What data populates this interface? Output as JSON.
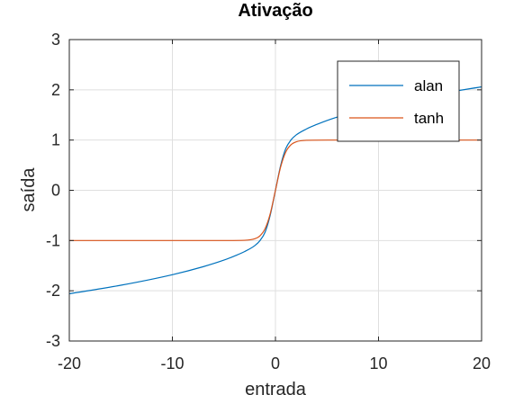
{
  "chart_data": {
    "type": "line",
    "title": "Ativação",
    "xlabel": "entrada",
    "ylabel": "saída",
    "xlim": [
      -20,
      20
    ],
    "ylim": [
      -3,
      3
    ],
    "xticks": [
      -20,
      -10,
      0,
      10,
      20
    ],
    "yticks": [
      -3,
      -2,
      -1,
      0,
      1,
      2,
      3
    ],
    "grid": true,
    "legend_position": "top-right",
    "series": [
      {
        "name": "alan",
        "color": "#0072bd",
        "x": [
          -20,
          -15,
          -10,
          -7,
          -5,
          -4,
          -3,
          -2,
          -1.5,
          -1,
          -0.5,
          0,
          0.5,
          1,
          1.5,
          2,
          3,
          4,
          5,
          7,
          10,
          15,
          20
        ],
        "y": [
          -2.06,
          -1.89,
          -1.68,
          -1.52,
          -1.39,
          -1.31,
          -1.22,
          -1.1,
          -1.0,
          -0.83,
          -0.49,
          0,
          0.49,
          0.83,
          1.0,
          1.1,
          1.22,
          1.31,
          1.39,
          1.52,
          1.68,
          1.89,
          2.06
        ]
      },
      {
        "name": "tanh",
        "color": "#d95319",
        "x": [
          -20,
          -10,
          -5,
          -3,
          -2,
          -1.5,
          -1,
          -0.5,
          0,
          0.5,
          1,
          1.5,
          2,
          3,
          5,
          10,
          20
        ],
        "y": [
          -1,
          -1,
          -1,
          -0.995,
          -0.964,
          -0.905,
          -0.762,
          -0.462,
          0,
          0.462,
          0.762,
          0.905,
          0.964,
          0.995,
          1,
          1,
          1
        ]
      }
    ]
  }
}
